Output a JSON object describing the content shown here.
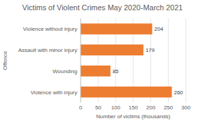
{
  "chart_data": {
    "type": "bar",
    "orientation": "horizontal",
    "title": "Victims of Violent Crimes May 2020-March 2021",
    "x_label": "Number of victims (thousands)",
    "y_label": "Offence",
    "categories": [
      "Violence without injury",
      "Assault with minor injury",
      "Wounding",
      "Violence with injury"
    ],
    "values": [
      204,
      179,
      85,
      260
    ],
    "color": "#ed7d31",
    "xlim": [
      0,
      300
    ],
    "xticks": [
      0,
      50,
      100,
      150,
      200,
      250,
      300
    ],
    "grid": true,
    "data_labels": true
  }
}
